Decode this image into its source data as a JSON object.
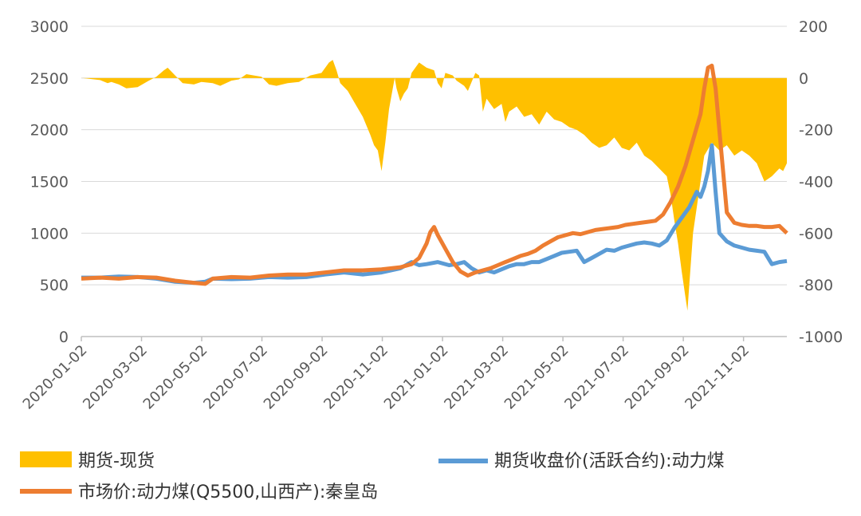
{
  "chart_data": {
    "type": "line",
    "x_dates": [
      "2020-01-02",
      "2020-03-02",
      "2020-05-02",
      "2020-07-02",
      "2020-09-02",
      "2020-11-02",
      "2021-01-02",
      "2021-03-02",
      "2021-05-02",
      "2021-07-02",
      "2021-09-02",
      "2021-11-02"
    ],
    "x_ticks": [
      "2020-01-02",
      "2020-03-02",
      "2020-05-02",
      "2020-07-02",
      "2020-09-02",
      "2020-11-02",
      "2021-01-02",
      "2021-03-02",
      "2021-05-02",
      "2021-07-02",
      "2021-09-02",
      "2021-11-02"
    ],
    "y_left": {
      "min": 0,
      "max": 3000,
      "ticks": [
        "3000",
        "2500",
        "2000",
        "1500",
        "1000",
        "500",
        "0"
      ]
    },
    "y_right": {
      "min": -1000,
      "max": 200,
      "ticks": [
        "200",
        "0",
        "-200",
        "-400",
        "-600",
        "-800",
        "-1000"
      ]
    },
    "grid": true,
    "legend_position": "bottom",
    "series": [
      {
        "name": "期货-现货",
        "type": "area",
        "axis": "right",
        "color": "#FFC000",
        "points": [
          [
            0,
            0
          ],
          [
            0.02,
            -3
          ],
          [
            0.05,
            -8
          ],
          [
            0.07,
            -20
          ],
          [
            0.08,
            -15
          ],
          [
            0.1,
            -25
          ],
          [
            0.12,
            -40
          ],
          [
            0.15,
            -35
          ],
          [
            0.18,
            -10
          ],
          [
            0.2,
            5
          ],
          [
            0.22,
            30
          ],
          [
            0.23,
            40
          ],
          [
            0.24,
            25
          ],
          [
            0.25,
            10
          ],
          [
            0.27,
            -20
          ],
          [
            0.3,
            -25
          ],
          [
            0.32,
            -15
          ],
          [
            0.35,
            -20
          ],
          [
            0.37,
            -30
          ],
          [
            0.4,
            -10
          ],
          [
            0.42,
            -5
          ],
          [
            0.44,
            15
          ],
          [
            0.46,
            10
          ],
          [
            0.48,
            5
          ],
          [
            0.5,
            -25
          ],
          [
            0.52,
            -30
          ],
          [
            0.55,
            -20
          ],
          [
            0.58,
            -15
          ],
          [
            0.61,
            10
          ],
          [
            0.64,
            20
          ],
          [
            0.66,
            60
          ],
          [
            0.67,
            70
          ],
          [
            0.68,
            30
          ],
          [
            0.69,
            -20
          ],
          [
            0.71,
            -50
          ],
          [
            0.73,
            -100
          ],
          [
            0.75,
            -150
          ],
          [
            0.77,
            -220
          ],
          [
            0.78,
            -260
          ],
          [
            0.79,
            -280
          ],
          [
            0.8,
            -360
          ],
          [
            0.81,
            -250
          ],
          [
            0.82,
            -120
          ],
          [
            0.83,
            -40
          ],
          [
            0.835,
            0
          ],
          [
            0.84,
            -40
          ],
          [
            0.85,
            -90
          ],
          [
            0.86,
            -60
          ],
          [
            0.87,
            -40
          ],
          [
            0.88,
            20
          ],
          [
            0.9,
            60
          ],
          [
            0.92,
            40
          ],
          [
            0.94,
            30
          ],
          [
            0.95,
            -20
          ],
          [
            0.96,
            -40
          ],
          [
            0.97,
            20
          ],
          [
            0.99,
            10
          ],
          [
            1.0,
            -10
          ],
          [
            1.02,
            -30
          ],
          [
            1.03,
            -50
          ],
          [
            1.05,
            20
          ],
          [
            1.06,
            10
          ],
          [
            1.07,
            -130
          ],
          [
            1.08,
            -80
          ],
          [
            1.1,
            -120
          ],
          [
            1.12,
            -100
          ],
          [
            1.13,
            -170
          ],
          [
            1.14,
            -130
          ],
          [
            1.16,
            -110
          ],
          [
            1.18,
            -150
          ],
          [
            1.2,
            -140
          ],
          [
            1.22,
            -180
          ],
          [
            1.24,
            -130
          ],
          [
            1.26,
            -160
          ],
          [
            1.28,
            -170
          ],
          [
            1.3,
            -190
          ],
          [
            1.32,
            -200
          ],
          [
            1.34,
            -220
          ],
          [
            1.36,
            -250
          ],
          [
            1.38,
            -270
          ],
          [
            1.4,
            -260
          ],
          [
            1.42,
            -230
          ],
          [
            1.44,
            -270
          ],
          [
            1.46,
            -280
          ],
          [
            1.48,
            -250
          ],
          [
            1.5,
            -300
          ],
          [
            1.52,
            -320
          ],
          [
            1.54,
            -350
          ],
          [
            1.56,
            -380
          ],
          [
            1.57,
            -450
          ],
          [
            1.58,
            -550
          ],
          [
            1.59,
            -640
          ],
          [
            1.6,
            -750
          ],
          [
            1.61,
            -850
          ],
          [
            1.615,
            -900
          ],
          [
            1.62,
            -800
          ],
          [
            1.63,
            -600
          ],
          [
            1.64,
            -500
          ],
          [
            1.66,
            -300
          ],
          [
            1.68,
            -250
          ],
          [
            1.7,
            -280
          ],
          [
            1.72,
            -260
          ],
          [
            1.74,
            -300
          ],
          [
            1.76,
            -280
          ],
          [
            1.78,
            -300
          ],
          [
            1.8,
            -330
          ],
          [
            1.82,
            -400
          ],
          [
            1.84,
            -380
          ],
          [
            1.86,
            -350
          ],
          [
            1.87,
            -360
          ],
          [
            1.88,
            -330
          ]
        ]
      },
      {
        "name": "期货收盘价(活跃合约):动力煤",
        "type": "line",
        "axis": "left",
        "color": "#5B9BD5",
        "points": [
          [
            0,
            570
          ],
          [
            0.05,
            570
          ],
          [
            0.1,
            580
          ],
          [
            0.15,
            575
          ],
          [
            0.2,
            560
          ],
          [
            0.25,
            530
          ],
          [
            0.3,
            520
          ],
          [
            0.33,
            530
          ],
          [
            0.35,
            560
          ],
          [
            0.4,
            555
          ],
          [
            0.45,
            560
          ],
          [
            0.5,
            575
          ],
          [
            0.55,
            570
          ],
          [
            0.6,
            575
          ],
          [
            0.65,
            600
          ],
          [
            0.7,
            620
          ],
          [
            0.75,
            600
          ],
          [
            0.8,
            620
          ],
          [
            0.85,
            660
          ],
          [
            0.88,
            720
          ],
          [
            0.9,
            690
          ],
          [
            0.92,
            700
          ],
          [
            0.95,
            720
          ],
          [
            0.98,
            690
          ],
          [
            1.0,
            700
          ],
          [
            1.02,
            720
          ],
          [
            1.04,
            660
          ],
          [
            1.06,
            620
          ],
          [
            1.08,
            640
          ],
          [
            1.1,
            620
          ],
          [
            1.12,
            650
          ],
          [
            1.14,
            680
          ],
          [
            1.16,
            700
          ],
          [
            1.18,
            700
          ],
          [
            1.2,
            720
          ],
          [
            1.22,
            720
          ],
          [
            1.24,
            750
          ],
          [
            1.26,
            780
          ],
          [
            1.28,
            810
          ],
          [
            1.3,
            820
          ],
          [
            1.32,
            830
          ],
          [
            1.34,
            720
          ],
          [
            1.36,
            760
          ],
          [
            1.38,
            800
          ],
          [
            1.4,
            840
          ],
          [
            1.42,
            830
          ],
          [
            1.44,
            860
          ],
          [
            1.46,
            880
          ],
          [
            1.48,
            900
          ],
          [
            1.5,
            910
          ],
          [
            1.52,
            900
          ],
          [
            1.54,
            880
          ],
          [
            1.56,
            930
          ],
          [
            1.58,
            1050
          ],
          [
            1.6,
            1150
          ],
          [
            1.62,
            1250
          ],
          [
            1.64,
            1400
          ],
          [
            1.65,
            1350
          ],
          [
            1.66,
            1450
          ],
          [
            1.67,
            1600
          ],
          [
            1.68,
            1850
          ],
          [
            1.69,
            1400
          ],
          [
            1.7,
            1000
          ],
          [
            1.72,
            920
          ],
          [
            1.74,
            880
          ],
          [
            1.76,
            860
          ],
          [
            1.78,
            840
          ],
          [
            1.8,
            830
          ],
          [
            1.82,
            820
          ],
          [
            1.84,
            700
          ],
          [
            1.86,
            720
          ],
          [
            1.88,
            730
          ]
        ]
      },
      {
        "name": "市场价:动力煤(Q5500,山西产):秦皇岛",
        "type": "line",
        "axis": "left",
        "color": "#ED7D31",
        "points": [
          [
            0,
            560
          ],
          [
            0.05,
            570
          ],
          [
            0.1,
            560
          ],
          [
            0.15,
            575
          ],
          [
            0.2,
            570
          ],
          [
            0.25,
            540
          ],
          [
            0.3,
            520
          ],
          [
            0.33,
            510
          ],
          [
            0.35,
            560
          ],
          [
            0.4,
            575
          ],
          [
            0.45,
            570
          ],
          [
            0.5,
            590
          ],
          [
            0.55,
            600
          ],
          [
            0.6,
            600
          ],
          [
            0.65,
            620
          ],
          [
            0.7,
            640
          ],
          [
            0.75,
            640
          ],
          [
            0.8,
            650
          ],
          [
            0.85,
            670
          ],
          [
            0.88,
            700
          ],
          [
            0.9,
            760
          ],
          [
            0.92,
            900
          ],
          [
            0.93,
            1010
          ],
          [
            0.94,
            1060
          ],
          [
            0.95,
            980
          ],
          [
            0.97,
            850
          ],
          [
            0.99,
            720
          ],
          [
            1.01,
            630
          ],
          [
            1.03,
            590
          ],
          [
            1.05,
            620
          ],
          [
            1.07,
            640
          ],
          [
            1.09,
            660
          ],
          [
            1.11,
            690
          ],
          [
            1.13,
            720
          ],
          [
            1.15,
            750
          ],
          [
            1.17,
            780
          ],
          [
            1.19,
            800
          ],
          [
            1.21,
            830
          ],
          [
            1.23,
            880
          ],
          [
            1.25,
            920
          ],
          [
            1.27,
            960
          ],
          [
            1.29,
            980
          ],
          [
            1.31,
            1000
          ],
          [
            1.33,
            990
          ],
          [
            1.35,
            1010
          ],
          [
            1.37,
            1030
          ],
          [
            1.39,
            1040
          ],
          [
            1.41,
            1050
          ],
          [
            1.43,
            1060
          ],
          [
            1.45,
            1080
          ],
          [
            1.47,
            1090
          ],
          [
            1.49,
            1100
          ],
          [
            1.51,
            1110
          ],
          [
            1.53,
            1120
          ],
          [
            1.55,
            1180
          ],
          [
            1.57,
            1300
          ],
          [
            1.59,
            1450
          ],
          [
            1.61,
            1650
          ],
          [
            1.63,
            1900
          ],
          [
            1.65,
            2150
          ],
          [
            1.66,
            2400
          ],
          [
            1.67,
            2600
          ],
          [
            1.68,
            2620
          ],
          [
            1.69,
            2400
          ],
          [
            1.7,
            2000
          ],
          [
            1.71,
            1600
          ],
          [
            1.72,
            1200
          ],
          [
            1.74,
            1100
          ],
          [
            1.76,
            1080
          ],
          [
            1.78,
            1070
          ],
          [
            1.8,
            1070
          ],
          [
            1.82,
            1060
          ],
          [
            1.84,
            1060
          ],
          [
            1.86,
            1070
          ],
          [
            1.88,
            1000
          ]
        ]
      }
    ]
  },
  "legend": {
    "item1": "期货-现货",
    "item2": "期货收盘价(活跃合约):动力煤",
    "item3": "市场价:动力煤(Q5500,山西产):秦皇岛"
  }
}
